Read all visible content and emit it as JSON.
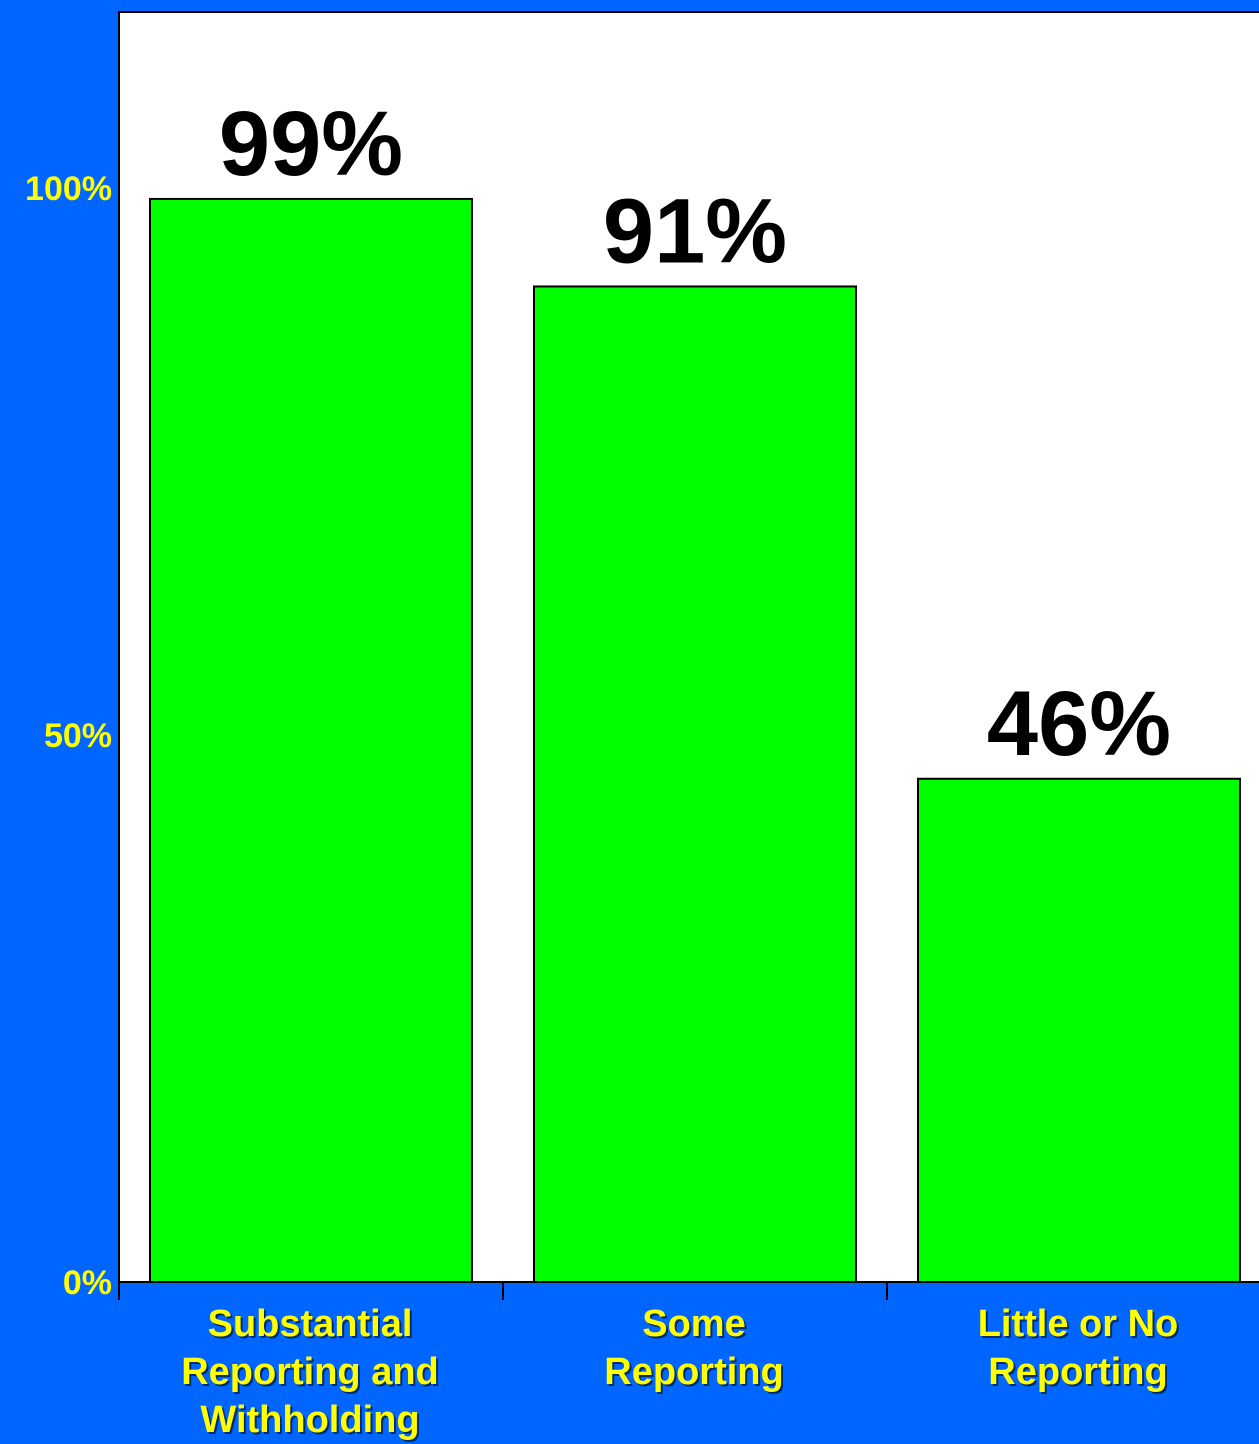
{
  "colors": {
    "background": "#0066ff",
    "plot_area": "#ffffff",
    "bar_fill": "#00ff00",
    "bar_stroke": "#000000",
    "value_label": "#000000",
    "tick_label": "#ffff00"
  },
  "chart_data": {
    "type": "bar",
    "categories": [
      [
        "Substantial",
        "Reporting and",
        "Withholding"
      ],
      [
        "Some",
        "Reporting"
      ],
      [
        "Little or No",
        "Reporting"
      ]
    ],
    "values": [
      99,
      91,
      46
    ],
    "data_labels": [
      "99%",
      "91%",
      "46%"
    ],
    "ylim": [
      0,
      116
    ],
    "yticks": [
      0,
      50,
      100
    ],
    "ytick_labels": [
      "0%",
      "50%",
      "100%"
    ],
    "grid": false,
    "legend": "none"
  }
}
